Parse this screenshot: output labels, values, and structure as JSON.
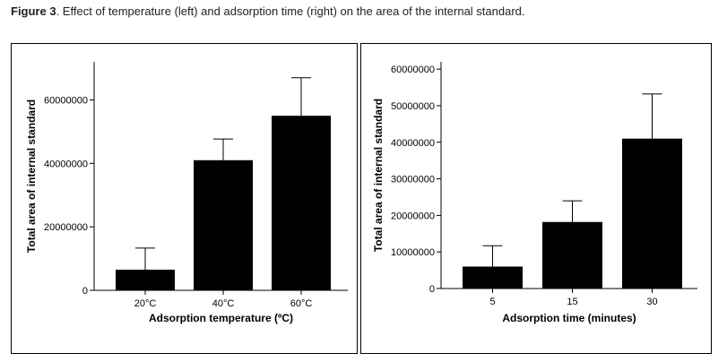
{
  "caption": {
    "label": "Figure 3",
    "text": ". Effect of temperature (left) and adsorption time (right) on the area of the internal standard."
  },
  "chart_data": [
    {
      "type": "bar",
      "categories": [
        "20°C",
        "40°C",
        "60°C"
      ],
      "values": [
        6500000,
        41000000,
        55000000
      ],
      "error_upper": [
        13300000,
        47700000,
        67000000
      ],
      "xlabel": "Adsorption temperature (ºC)",
      "ylabel": "Total area of internal standard",
      "ylim": [
        0,
        72000000
      ],
      "yticks": [
        0,
        20000000,
        40000000,
        60000000
      ],
      "ytick_labels": [
        "0",
        "20000000",
        "40000000",
        "60000000"
      ],
      "grid": false,
      "bar_color": "#000000"
    },
    {
      "type": "bar",
      "categories": [
        "5",
        "15",
        "30"
      ],
      "values": [
        6000000,
        18200000,
        41000000
      ],
      "error_upper": [
        11700000,
        24000000,
        53200000
      ],
      "xlabel": "Adsorption time (minutes)",
      "ylabel": "Total area of internal standard",
      "ylim": [
        0,
        62000000
      ],
      "yticks": [
        0,
        10000000,
        20000000,
        30000000,
        40000000,
        50000000,
        60000000
      ],
      "ytick_labels": [
        "0",
        "10000000",
        "20000000",
        "30000000",
        "40000000",
        "50000000",
        "60000000"
      ],
      "grid": false,
      "bar_color": "#000000"
    }
  ]
}
